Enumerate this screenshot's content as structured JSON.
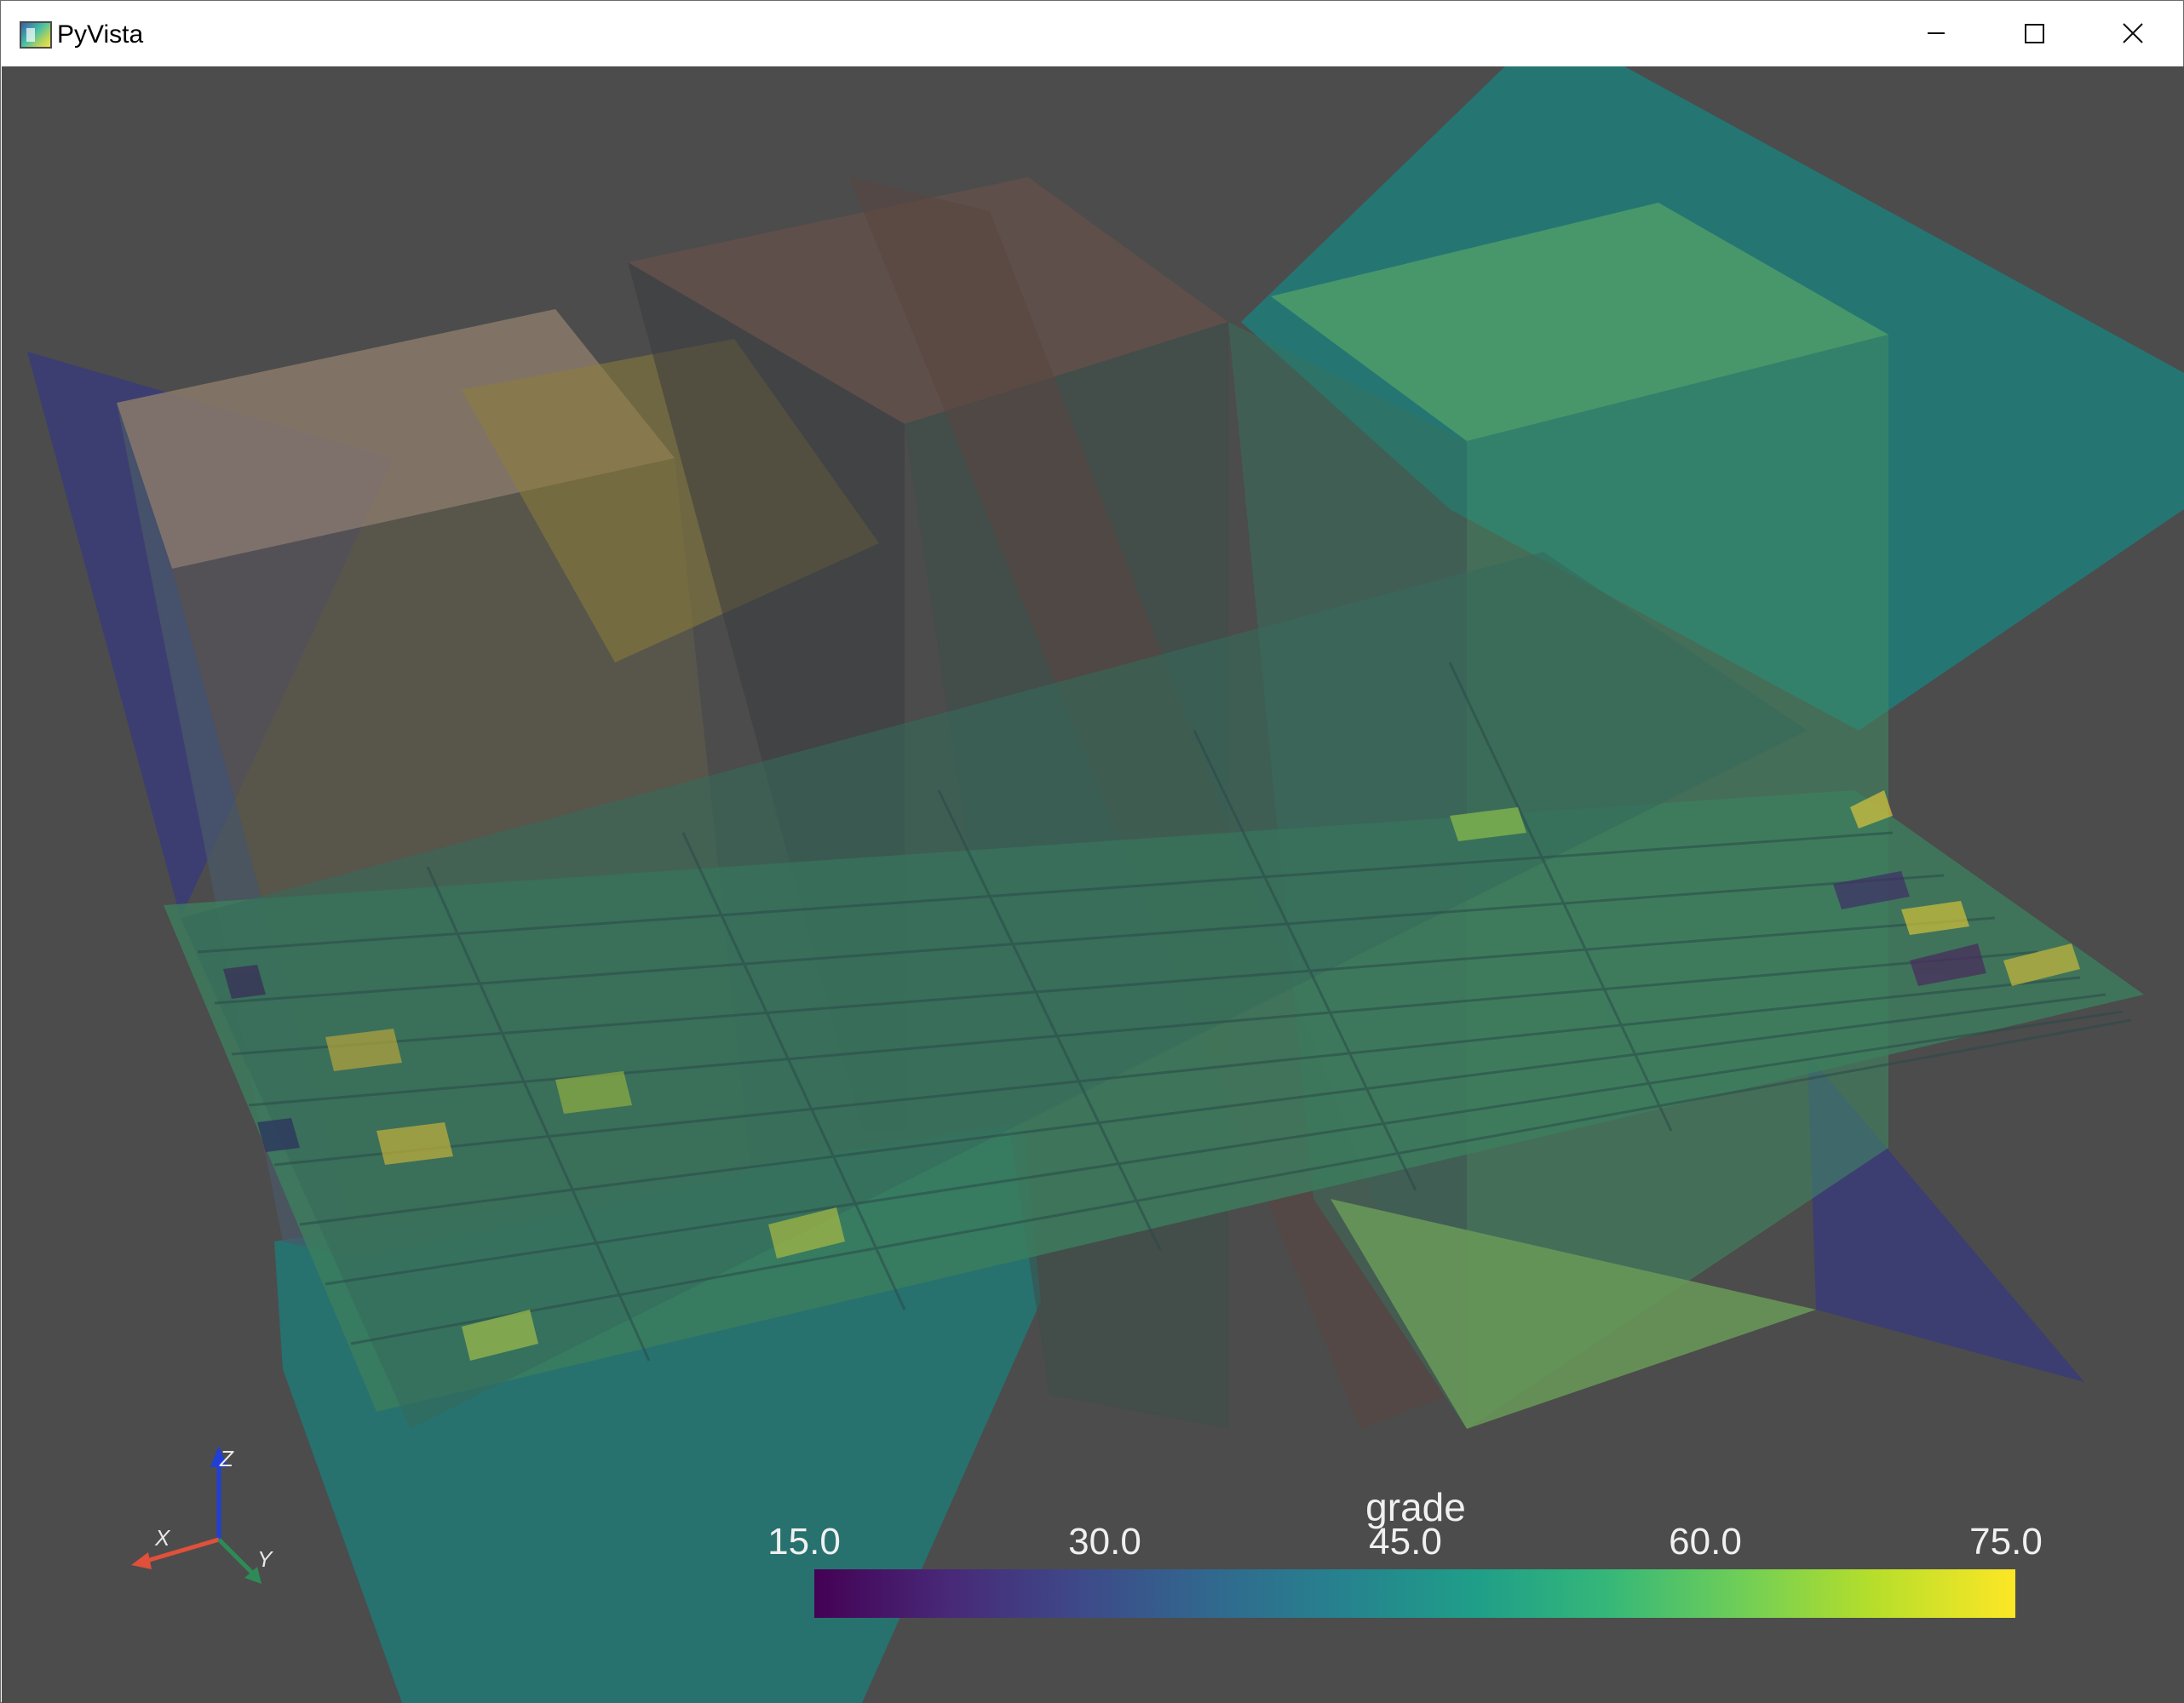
{
  "window": {
    "title": "PyVista",
    "icon": "pyvista-app-icon",
    "controls": [
      "minimize-icon",
      "maximize-icon",
      "close-icon"
    ]
  },
  "viewport": {
    "background": "#4c4c4c"
  },
  "scalar_bar": {
    "title": "grade",
    "ticks": [
      "15.0",
      "30.0",
      "45.0",
      "60.0",
      "75.0"
    ],
    "range": [
      15.0,
      75.0
    ],
    "colormap": "viridis"
  },
  "axes_widget": {
    "x_label": "X",
    "y_label": "Y",
    "z_label": "Z",
    "x_color": "#e0503a",
    "y_color": "#2e8b57",
    "z_color": "#1f3fd6"
  }
}
